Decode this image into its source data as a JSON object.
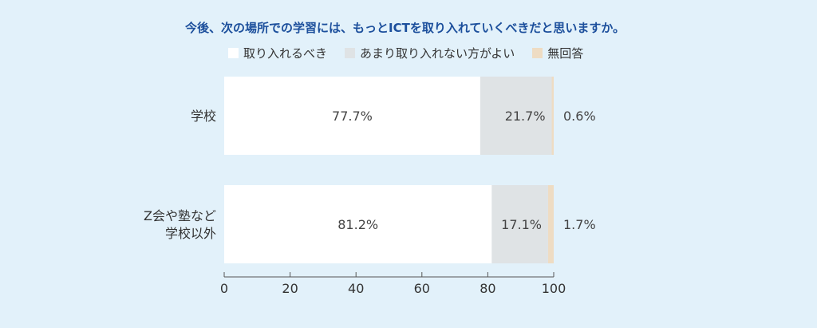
{
  "chart_data": {
    "type": "bar",
    "orientation": "horizontal",
    "stacked": true,
    "title": "今後、次の場所での学習には、もっとICTを取り入れていくべきだと思いますか。",
    "categories": [
      [
        "学校"
      ],
      [
        "Z会や塾など",
        "学校以外"
      ]
    ],
    "series": [
      {
        "name": "取り入れるべき",
        "values": [
          77.7,
          81.2
        ],
        "labels": [
          "77.7%",
          "81.2%"
        ],
        "color": "#ffffff"
      },
      {
        "name": "あまり取り入れない方がよい",
        "values": [
          21.7,
          17.1
        ],
        "labels": [
          "21.7%",
          "17.1%"
        ],
        "color": "#dfe3e5"
      },
      {
        "name": "無回答",
        "values": [
          0.6,
          1.7
        ],
        "labels": [
          "0.6%",
          "1.7%"
        ],
        "color": "#eedcc3"
      }
    ],
    "xlim": [
      0,
      100
    ],
    "xticks": [
      0,
      20,
      40,
      60,
      80,
      100
    ],
    "legend_position": "top",
    "grid": false
  }
}
